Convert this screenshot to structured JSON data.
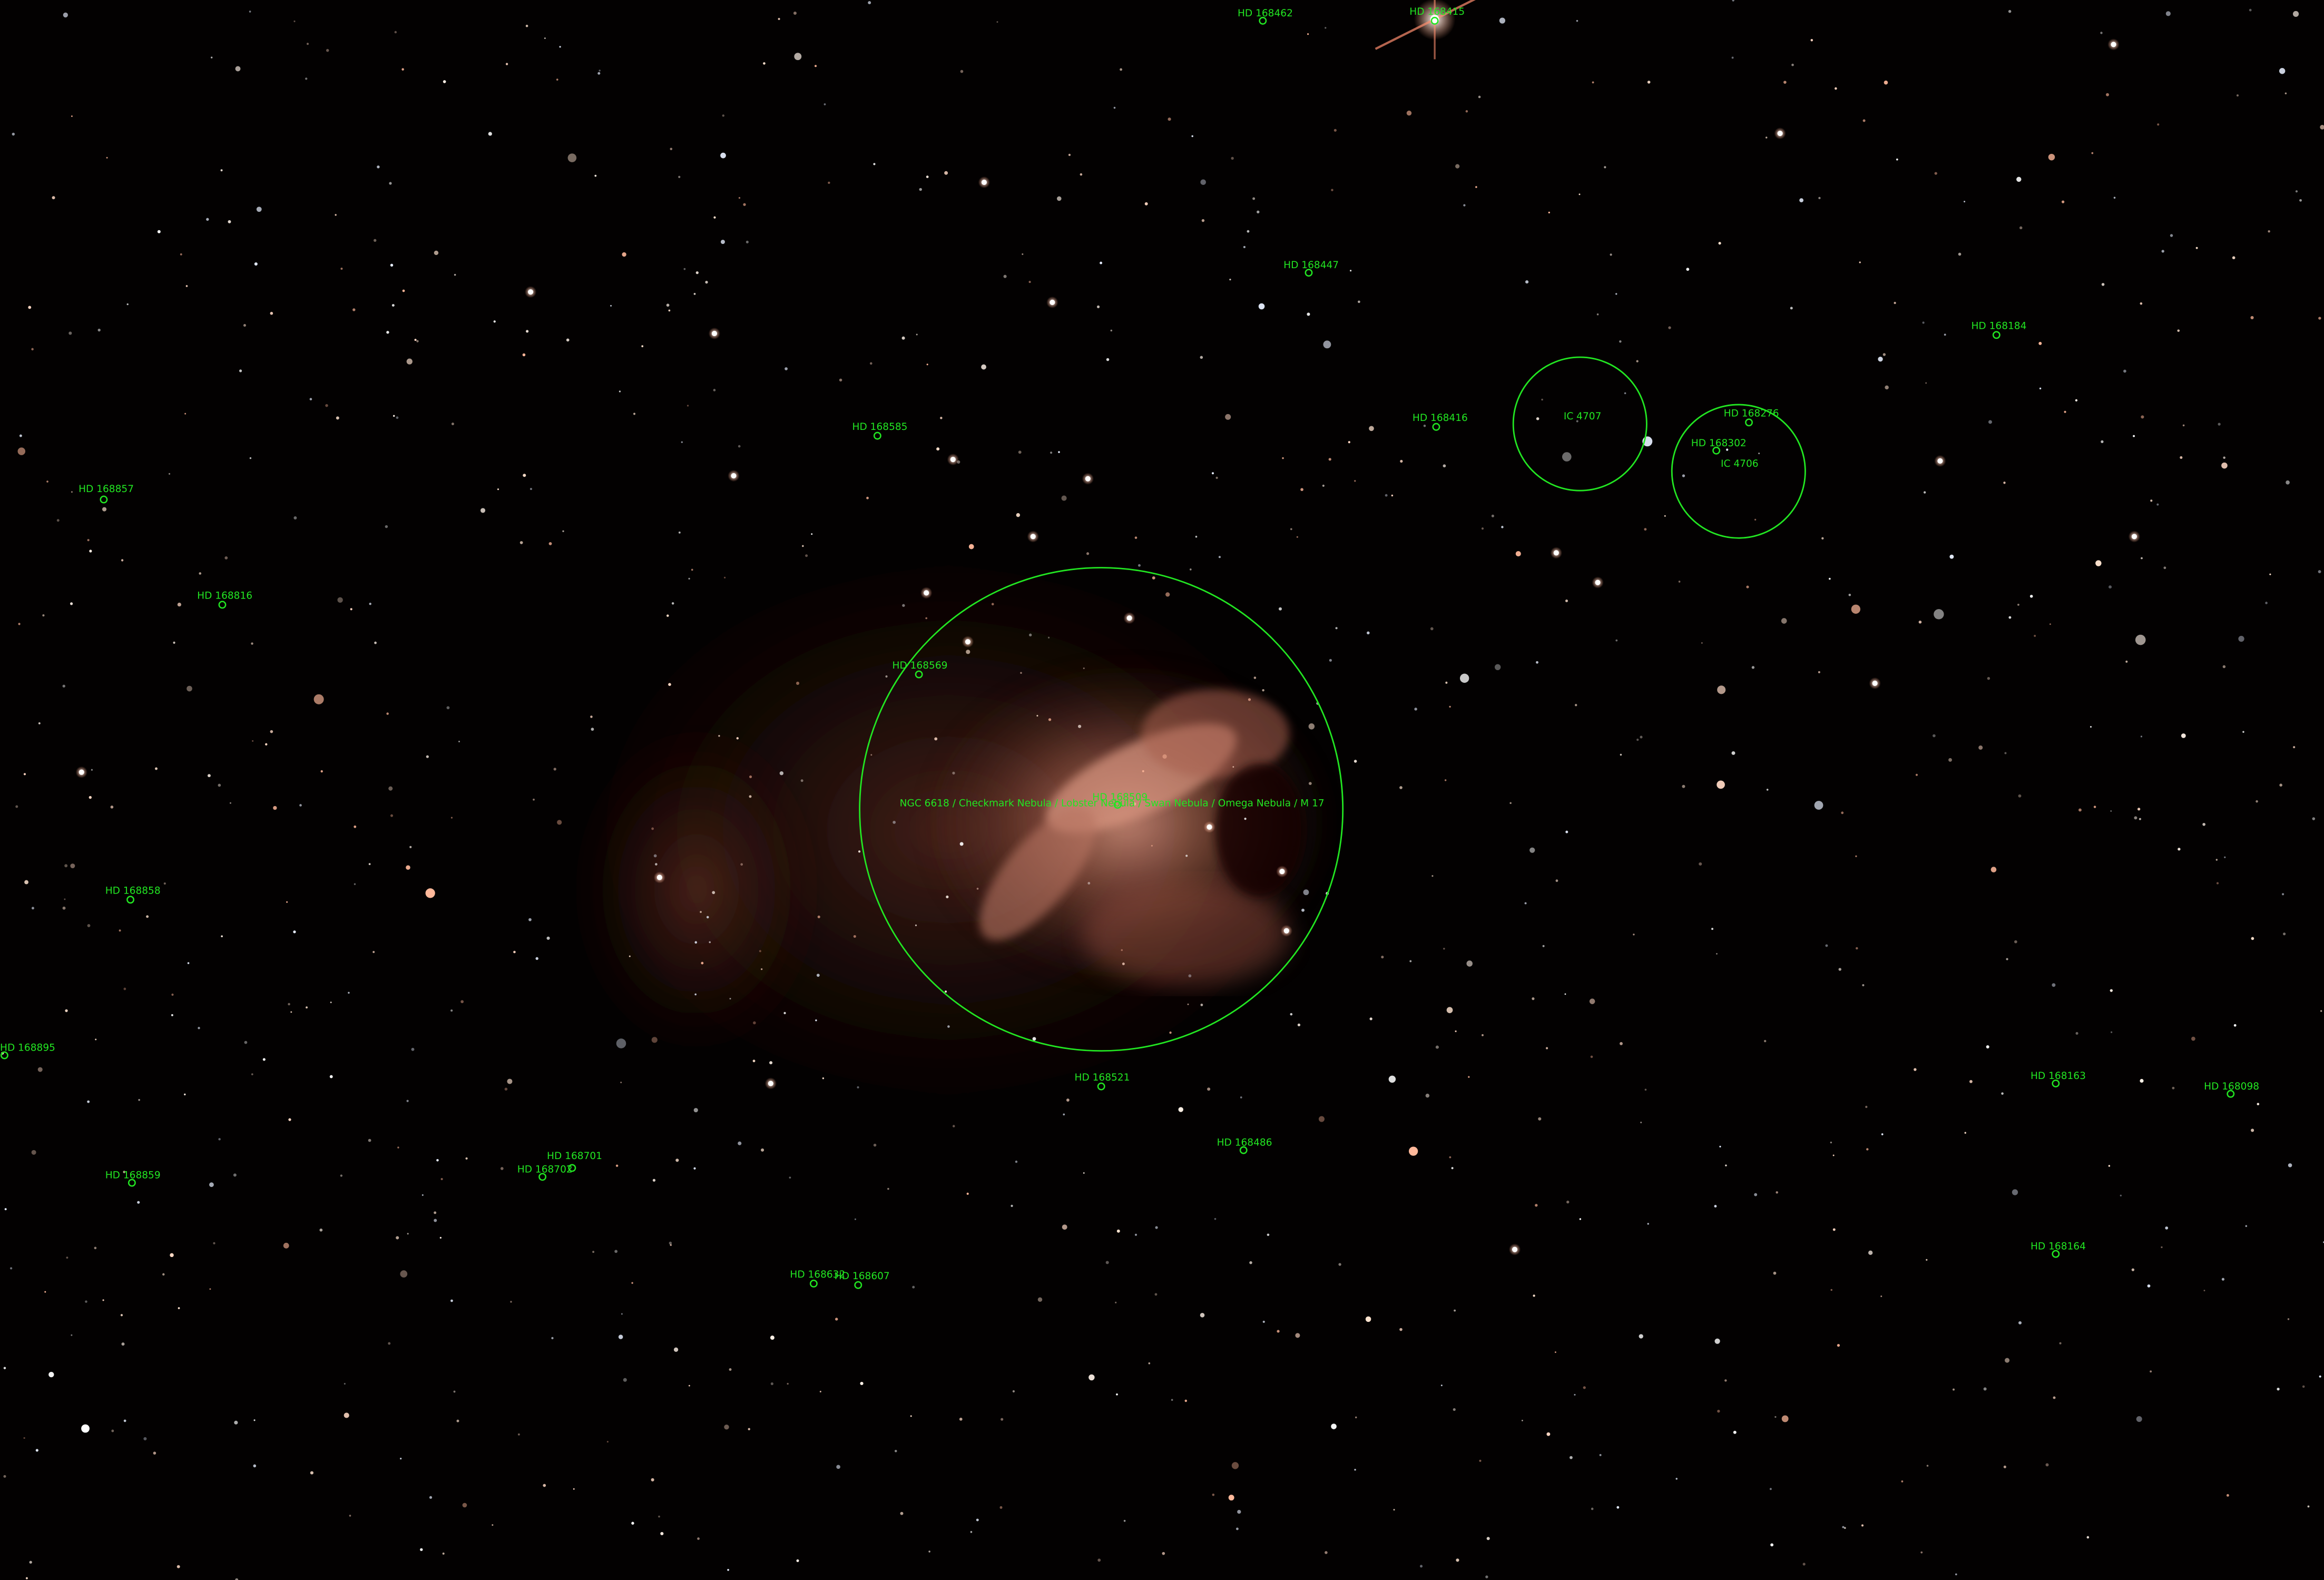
{
  "colors": {
    "sky": "#030101",
    "annotation": "#22e622",
    "nebula": "#c9806a"
  },
  "main_object": {
    "label": "NGC 6618 / Checkmark Nebula / Lobster Nebula / Swan Nebula / Omega Nebula / M 17"
  },
  "clusters": [
    {
      "label": "IC 4707"
    },
    {
      "label": "IC 4706"
    }
  ],
  "stars": [
    "HD 168462",
    "HD 168415",
    "HD 168447",
    "HD 168184",
    "HD 168276",
    "HD 168302",
    "HD 168416",
    "HD 168585",
    "HD 168857",
    "HD 168816",
    "HD 168569",
    "HD 168858",
    "HD 168895",
    "HD 168701",
    "HD 168702",
    "HD 168859",
    "HD 168521",
    "HD 168486",
    "HD 168163",
    "HD 168098",
    "HD 168164",
    "HD 168632",
    "HD 168607",
    "HD 168509"
  ]
}
